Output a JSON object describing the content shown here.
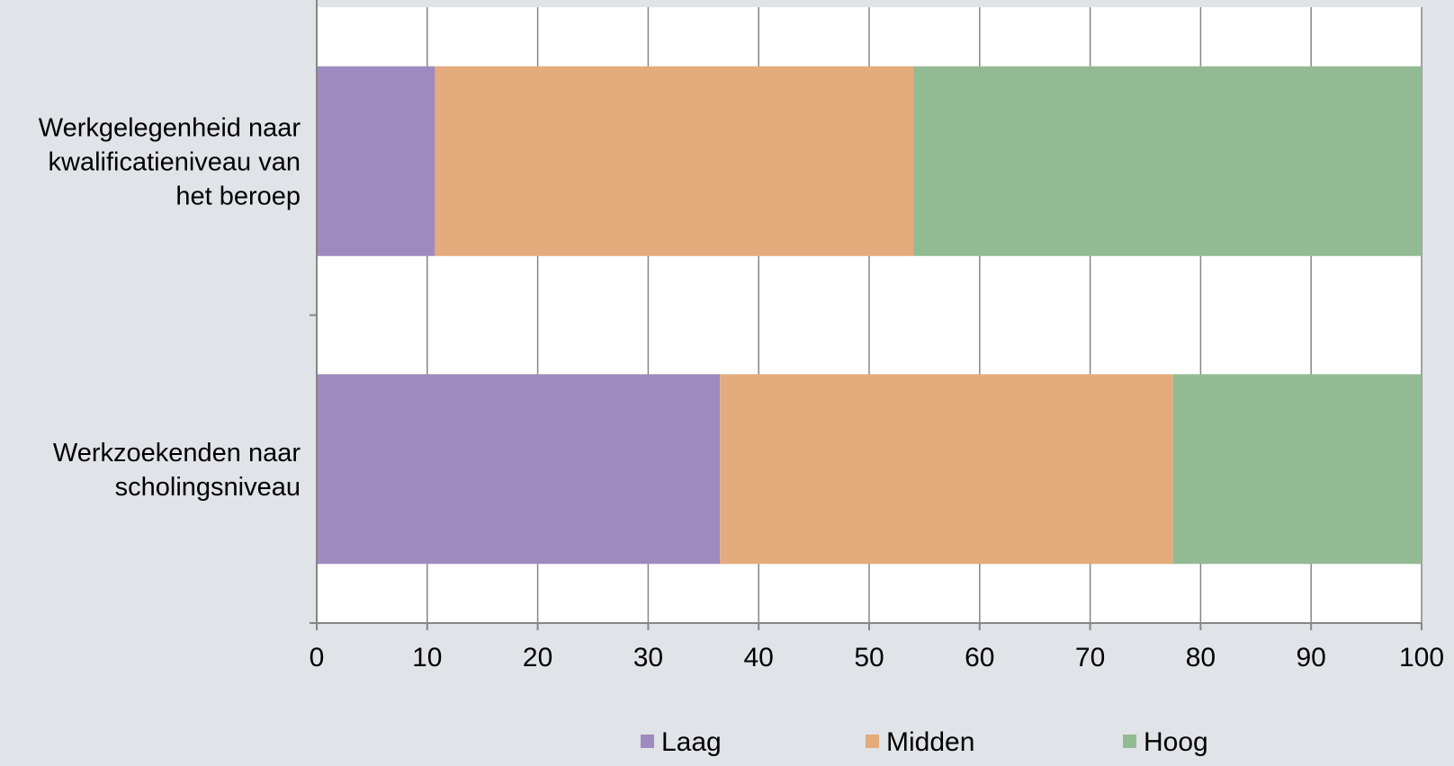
{
  "chart_data": {
    "type": "bar",
    "orientation": "horizontal",
    "stacked": true,
    "categories": [
      "Werkgelegenheid naar kwalificatieniveau van het beroep",
      "Werkzoekenden naar scholingsniveau"
    ],
    "category_lines": [
      [
        "Werkgelegenheid naar",
        "kwalificatieniveau van",
        "het beroep"
      ],
      [
        "Werkzoekenden naar",
        "scholingsniveau"
      ]
    ],
    "series": [
      {
        "name": "Laag",
        "color": "#9e8abe",
        "values": [
          10.7,
          36.5
        ]
      },
      {
        "name": "Midden",
        "color": "#e4ab7c",
        "values": [
          43.3,
          41.0
        ]
      },
      {
        "name": "Hoog",
        "color": "#93bb93",
        "values": [
          46.0,
          22.5
        ]
      }
    ],
    "xlim": [
      0,
      100
    ],
    "xticks": [
      0,
      10,
      20,
      30,
      40,
      50,
      60,
      70,
      80,
      90,
      100
    ],
    "grid": true,
    "legend_position": "bottom",
    "plot_background": "#ffffff",
    "page_background": "#e0e3e7"
  }
}
